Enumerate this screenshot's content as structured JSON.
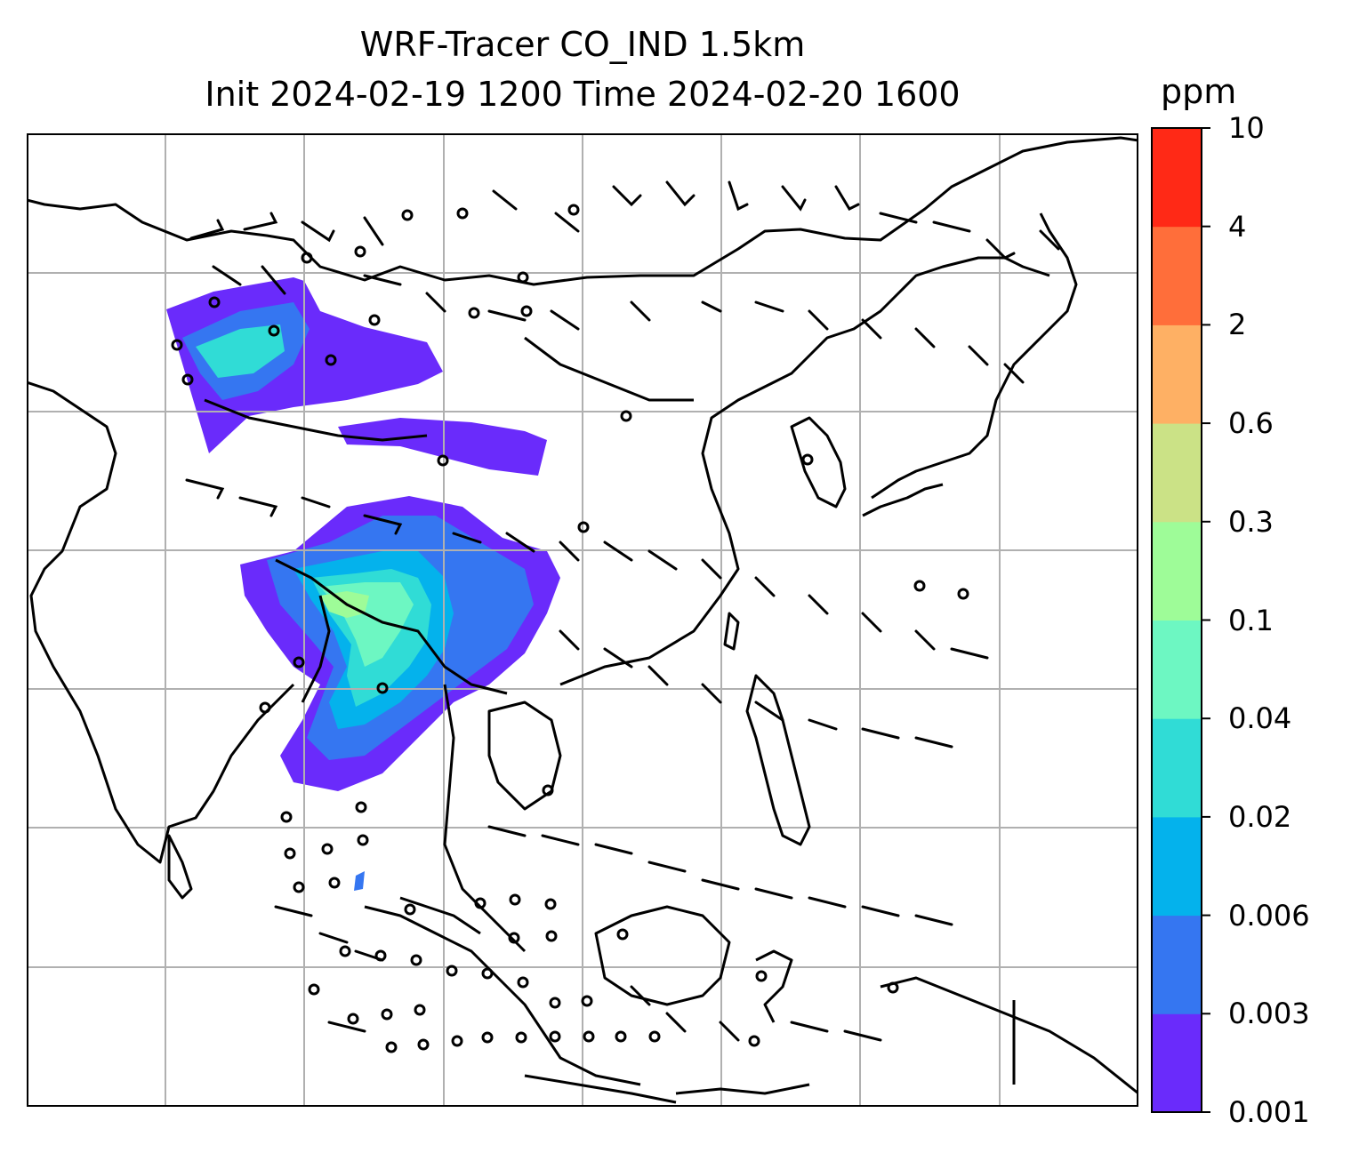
{
  "title": {
    "line1": "WRF-Tracer CO_IND 1.5km",
    "line2": "Init 2024-02-19 1200 Time 2024-02-20 1600"
  },
  "colorbar": {
    "unit": "ppm",
    "levels": [
      "0.001",
      "0.003",
      "0.006",
      "0.02",
      "0.04",
      "0.1",
      "0.3",
      "0.6",
      "2",
      "4",
      "10"
    ],
    "colors": [
      "#6a2bfb",
      "#3576f1",
      "#04b2ec",
      "#30dcd6",
      "#6df7c2",
      "#9efc98",
      "#cbe286",
      "#feb064",
      "#ff6e3a",
      "#ff2916"
    ]
  },
  "map": {
    "variable": "CO_IND tracer concentration",
    "overlay": "wind barbs",
    "gridlines": true,
    "coastlines": true
  }
}
